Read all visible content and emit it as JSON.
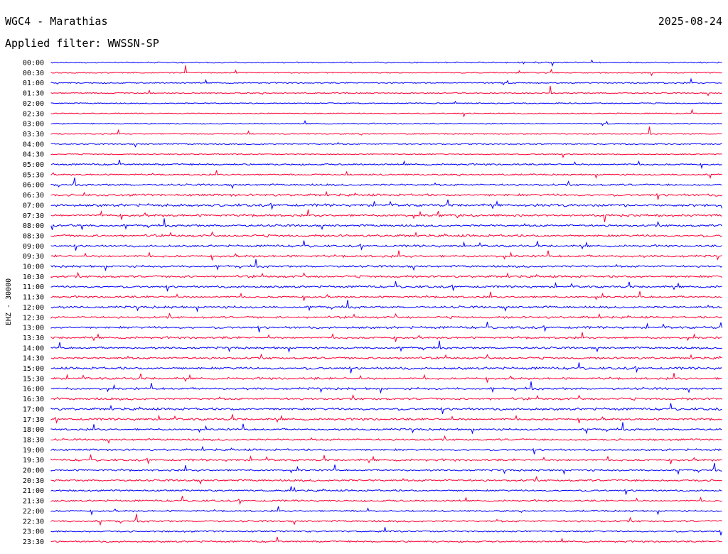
{
  "header": {
    "station": "WGC4 - Marathias",
    "date": "2025-08-24",
    "filter_label": "Applied filter: WWSSN-SP"
  },
  "chart_data": {
    "type": "helicorder",
    "title": "WGC4 - Marathias",
    "date": "2025-08-24",
    "filter": "WWSSN-SP",
    "ylabel": "EHZ - 30000",
    "colors": {
      "even_row": "#0000ff",
      "odd_row": "#ff0033"
    },
    "rows": [
      {
        "label": "00:00",
        "activity": 0.15
      },
      {
        "label": "00:30",
        "activity": 0.12
      },
      {
        "label": "01:00",
        "activity": 0.15
      },
      {
        "label": "01:30",
        "activity": 0.08
      },
      {
        "label": "02:00",
        "activity": 0.06
      },
      {
        "label": "02:30",
        "activity": 0.06
      },
      {
        "label": "03:00",
        "activity": 0.1
      },
      {
        "label": "03:30",
        "activity": 0.08
      },
      {
        "label": "04:00",
        "activity": 0.1
      },
      {
        "label": "04:30",
        "activity": 0.05
      },
      {
        "label": "05:00",
        "activity": 0.3
      },
      {
        "label": "05:30",
        "activity": 0.25
      },
      {
        "label": "06:00",
        "activity": 0.4
      },
      {
        "label": "06:30",
        "activity": 0.55
      },
      {
        "label": "07:00",
        "activity": 0.7
      },
      {
        "label": "07:30",
        "activity": 0.6
      },
      {
        "label": "08:00",
        "activity": 0.55
      },
      {
        "label": "08:30",
        "activity": 0.6
      },
      {
        "label": "09:00",
        "activity": 0.5
      },
      {
        "label": "09:30",
        "activity": 0.55
      },
      {
        "label": "10:00",
        "activity": 0.5
      },
      {
        "label": "10:30",
        "activity": 0.55
      },
      {
        "label": "11:00",
        "activity": 0.5
      },
      {
        "label": "11:30",
        "activity": 0.45
      },
      {
        "label": "12:00",
        "activity": 0.55
      },
      {
        "label": "12:30",
        "activity": 0.5
      },
      {
        "label": "13:00",
        "activity": 0.55
      },
      {
        "label": "13:30",
        "activity": 0.5
      },
      {
        "label": "14:00",
        "activity": 0.5
      },
      {
        "label": "14:30",
        "activity": 0.5
      },
      {
        "label": "15:00",
        "activity": 0.6
      },
      {
        "label": "15:30",
        "activity": 0.5
      },
      {
        "label": "16:00",
        "activity": 0.55
      },
      {
        "label": "16:30",
        "activity": 0.55
      },
      {
        "label": "17:00",
        "activity": 0.6
      },
      {
        "label": "17:30",
        "activity": 0.5
      },
      {
        "label": "18:00",
        "activity": 0.45
      },
      {
        "label": "18:30",
        "activity": 0.4
      },
      {
        "label": "19:00",
        "activity": 0.45
      },
      {
        "label": "19:30",
        "activity": 0.5
      },
      {
        "label": "20:00",
        "activity": 0.4
      },
      {
        "label": "20:30",
        "activity": 0.45
      },
      {
        "label": "21:00",
        "activity": 0.35
      },
      {
        "label": "21:30",
        "activity": 0.35
      },
      {
        "label": "22:00",
        "activity": 0.3
      },
      {
        "label": "22:30",
        "activity": 0.4
      },
      {
        "label": "23:00",
        "activity": 0.3
      },
      {
        "label": "23:30",
        "activity": 0.3
      }
    ]
  }
}
